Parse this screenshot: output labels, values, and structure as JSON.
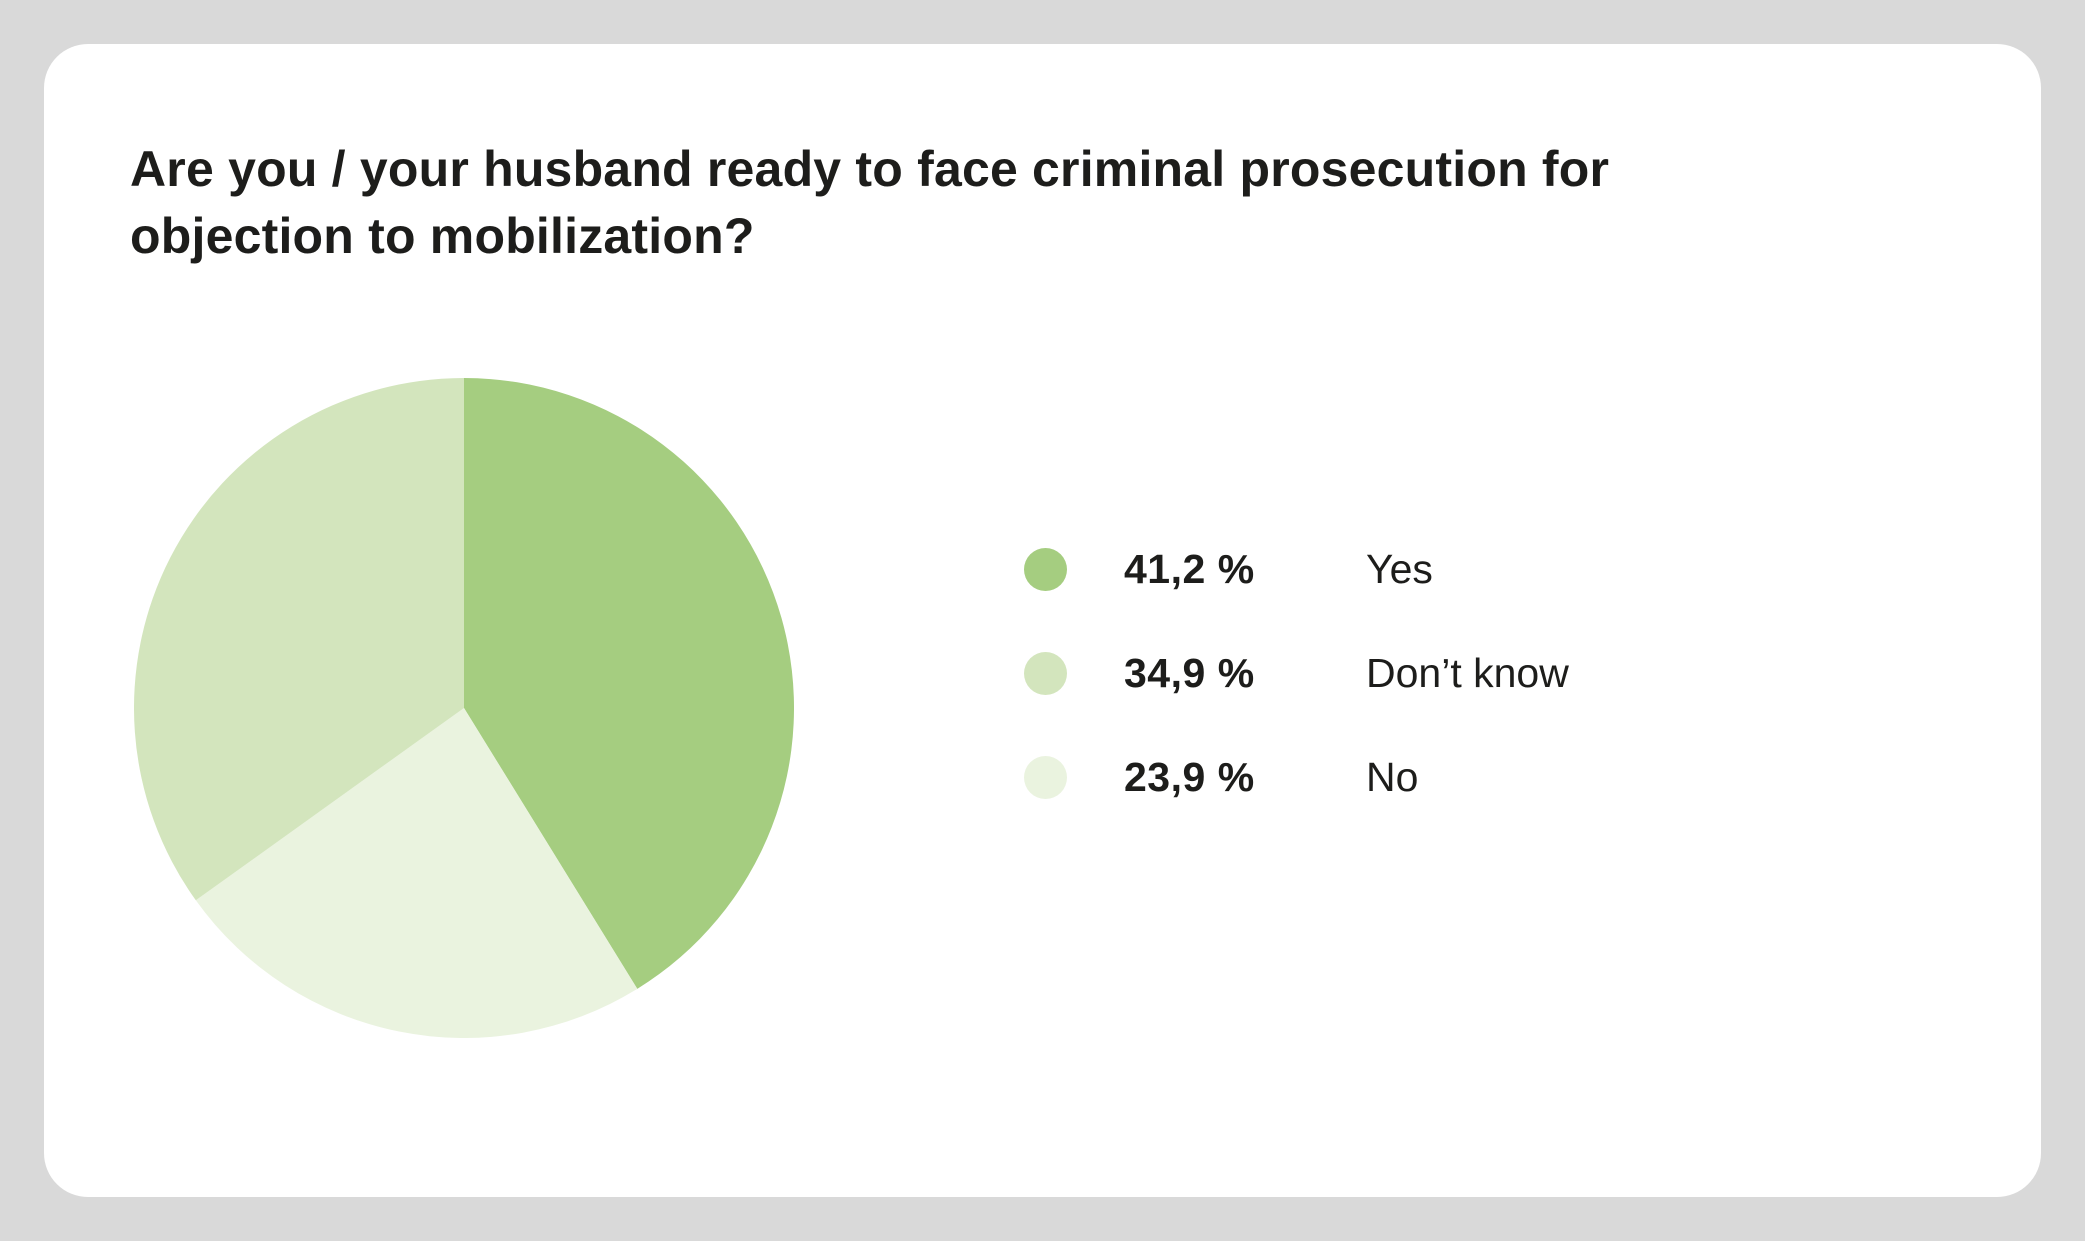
{
  "card": {
    "title": "Are you / your husband ready to face criminal prosecution for objection to mobilization?"
  },
  "chart_data": {
    "type": "pie",
    "title": "Are you / your husband ready to face criminal prosecution for objection to mobilization?",
    "start_angle_deg": -90,
    "direction": "clockwise",
    "legend_position": "right",
    "slices": [
      {
        "id": "yes",
        "label": "Yes",
        "value": 41.2,
        "value_label": "41,2 %",
        "color": "#a5cd80"
      },
      {
        "id": "no",
        "label": "No",
        "value": 23.9,
        "value_label": "23,9 %",
        "color": "#eaf3df"
      },
      {
        "id": "dont-know",
        "label": "Don’t know",
        "value": 34.9,
        "value_label": "34,9 %",
        "color": "#d3e5bd"
      }
    ],
    "legend_order": [
      "yes",
      "dont-know",
      "no"
    ]
  }
}
